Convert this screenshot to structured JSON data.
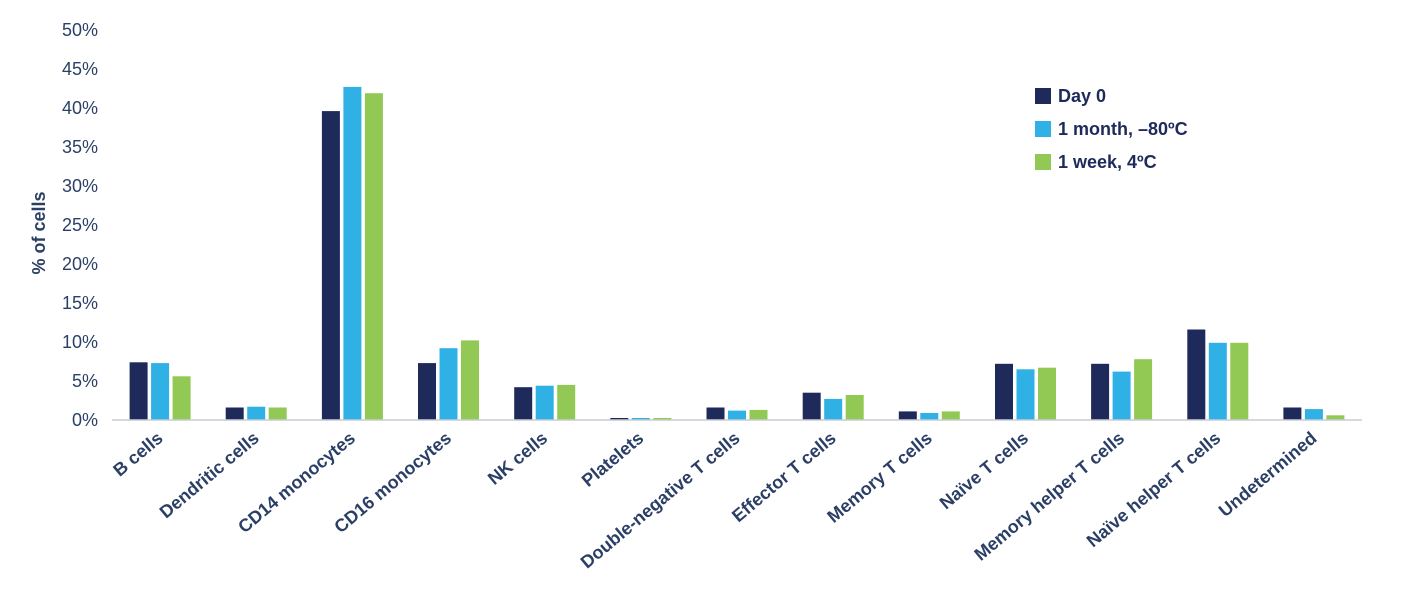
{
  "chart_data": {
    "type": "bar",
    "ylabel": "% of cells",
    "xlabel": "",
    "ylim": [
      0,
      50
    ],
    "yticks": [
      "0%",
      "5%",
      "10%",
      "15%",
      "20%",
      "25%",
      "30%",
      "35%",
      "40%",
      "45%",
      "50%"
    ],
    "grid": false,
    "legend_position": "top-right",
    "categories": [
      "B cells",
      "Dendritic cells",
      "CD14 monocytes",
      "CD16 monocytes",
      "NK cells",
      "Platelets",
      "Double-negative T cells",
      "Effector T cells",
      "Memory T cells",
      "Naïve T cells",
      "Memory helper T cells",
      "Naïve helper T cells",
      "Undetermined"
    ],
    "series": [
      {
        "name": "Day 0",
        "color": "#1e2a5a",
        "values": [
          7.4,
          1.6,
          39.6,
          7.3,
          4.2,
          0.05,
          1.6,
          3.5,
          1.1,
          7.2,
          7.2,
          11.6,
          1.6
        ]
      },
      {
        "name": "1 month, –80ºC",
        "color": "#2fb1e6",
        "values": [
          7.3,
          1.7,
          42.7,
          9.2,
          4.4,
          0.05,
          1.2,
          2.7,
          0.9,
          6.5,
          6.2,
          9.9,
          1.4
        ]
      },
      {
        "name": "1 week, 4ºC",
        "color": "#92c954",
        "values": [
          5.6,
          1.6,
          41.9,
          10.2,
          4.5,
          0.05,
          1.3,
          3.2,
          1.1,
          6.7,
          7.8,
          9.9,
          0.6
        ]
      }
    ]
  }
}
